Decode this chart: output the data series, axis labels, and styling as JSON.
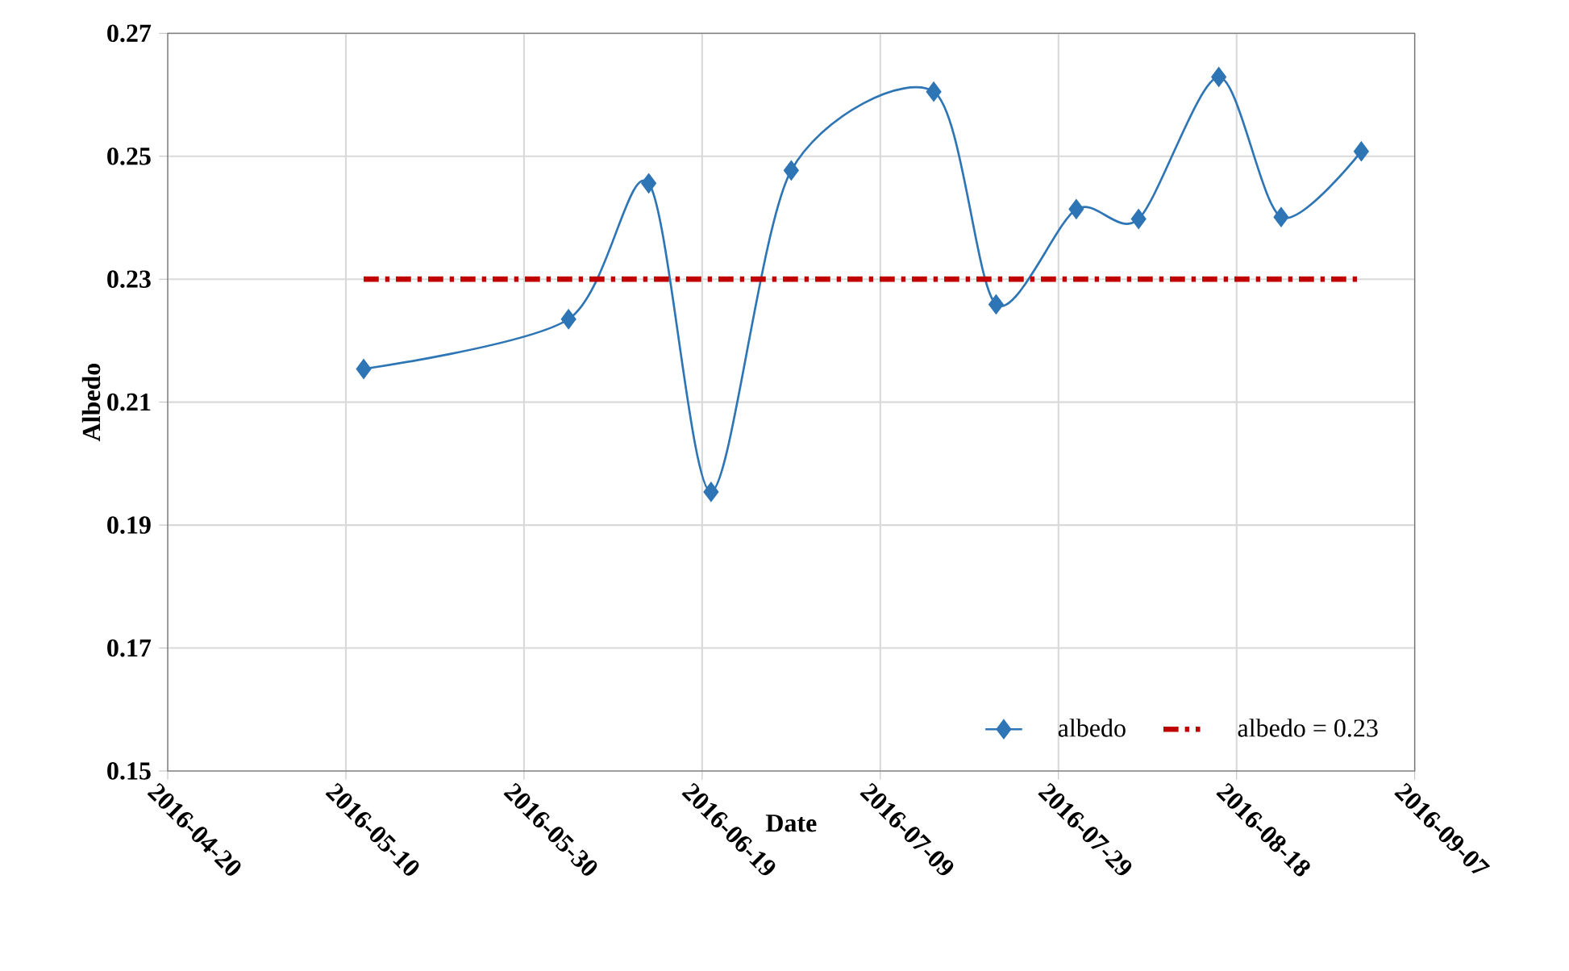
{
  "chart_data": {
    "type": "line",
    "xlabel": "Date",
    "ylabel": "Albedo",
    "x": [
      "2016-05-12",
      "2016-06-04",
      "2016-06-13",
      "2016-06-20",
      "2016-06-29",
      "2016-07-15",
      "2016-07-22",
      "2016-07-31",
      "2016-08-07",
      "2016-08-16",
      "2016-08-23",
      "2016-09-01"
    ],
    "series": [
      {
        "name": "albedo",
        "color": "#2e75b6",
        "values": [
          0.2154,
          0.2235,
          0.2456,
          0.1954,
          0.2477,
          0.2605,
          0.2259,
          0.2414,
          0.2398,
          0.2629,
          0.2401,
          0.2508
        ]
      }
    ],
    "ref_lines": [
      {
        "axis": "y",
        "value": 0.23,
        "label": "albedo = 0.23",
        "color": "#c00000",
        "line_style": "dashdot"
      }
    ],
    "xlim": [
      "2016-04-20",
      "2016-09-07"
    ],
    "xticks": [
      "2016-04-20",
      "2016-05-10",
      "2016-05-30",
      "2016-06-19",
      "2016-07-09",
      "2016-07-29",
      "2016-08-18",
      "2016-09-07"
    ],
    "ylim": [
      0.15,
      0.27
    ],
    "yticks": [
      0.15,
      0.17,
      0.19,
      0.21,
      0.23,
      0.25,
      0.27
    ],
    "grid": true,
    "legend": "bottom right",
    "marker": "diamond",
    "line_style": "solid"
  }
}
